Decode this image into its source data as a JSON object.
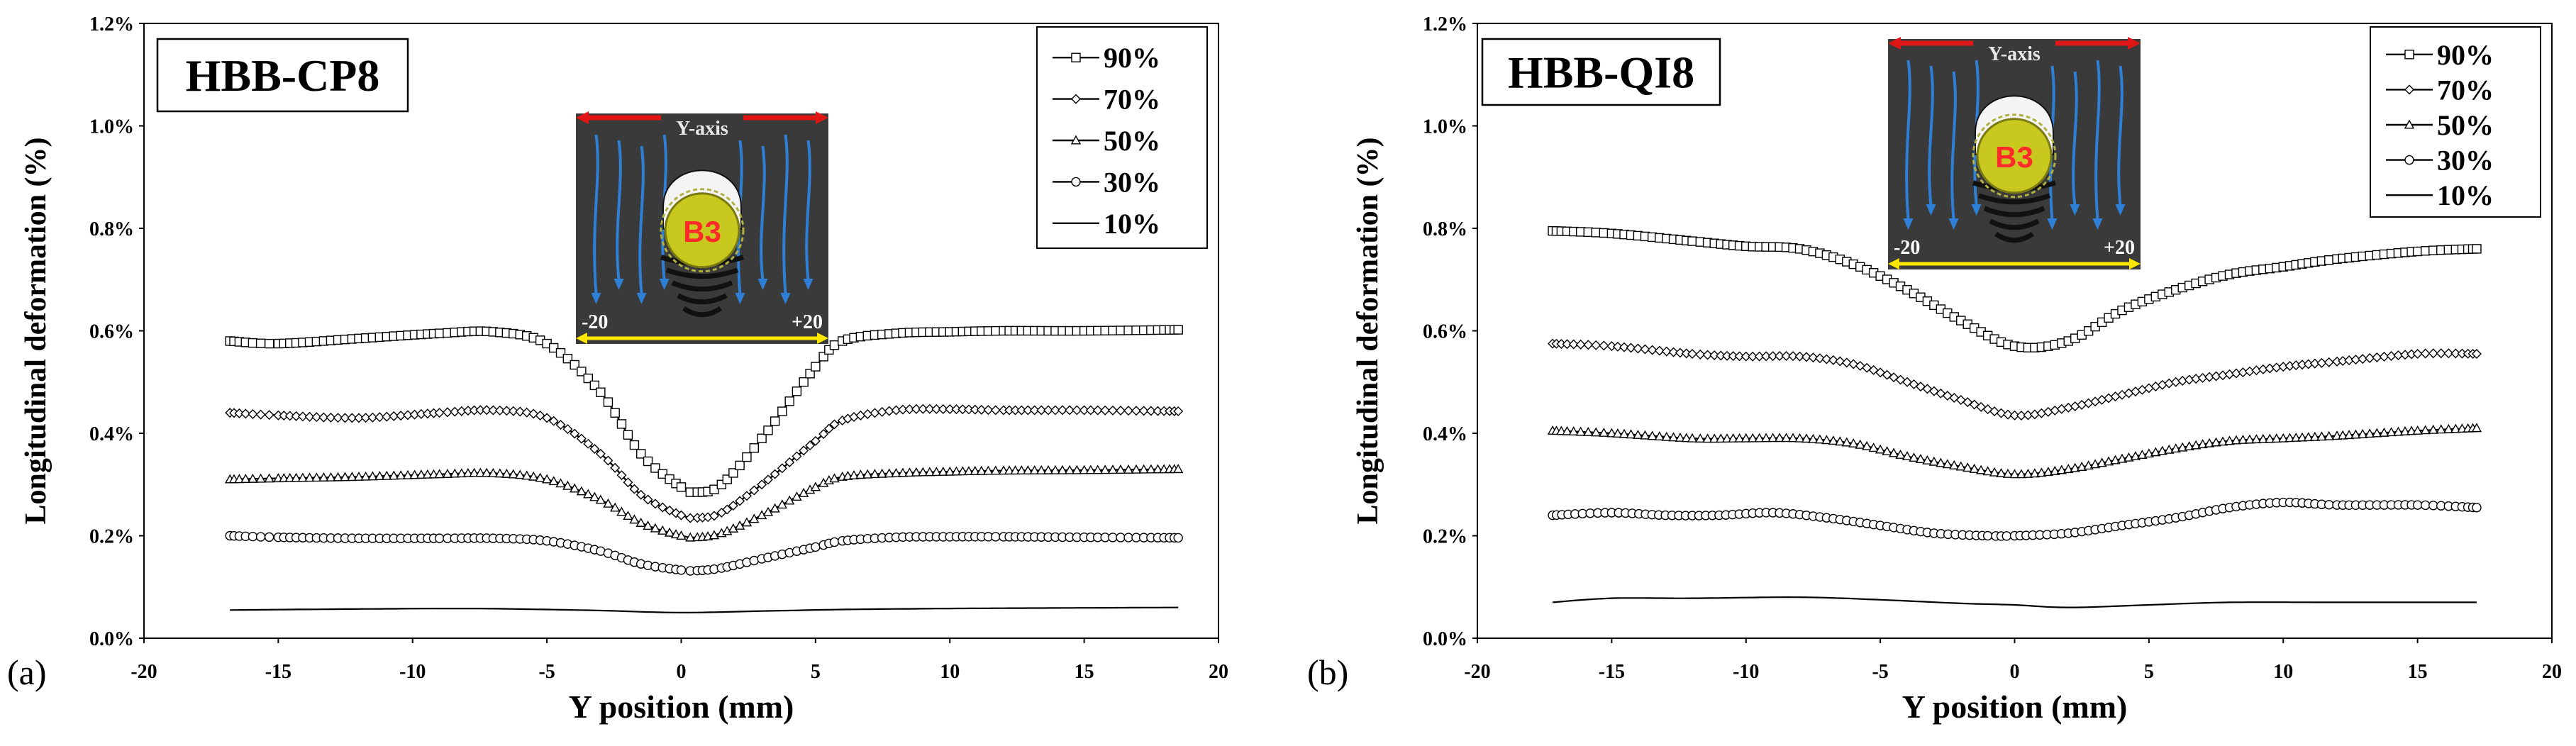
{
  "figure": {
    "panels": [
      {
        "label": "(a)",
        "chart_ref": 0
      },
      {
        "label": "(b)",
        "chart_ref": 1
      }
    ]
  },
  "colors": {
    "axis": "#000000",
    "inset_bg": "#3a3a3a",
    "arrow_blue": "#2e7fd6",
    "implant_yellow": "#c8c81e",
    "label_red": "#ff2a2a",
    "y_axis_arrow_red": "#e01515",
    "dimension_yellow": "#ffe600"
  },
  "chart_data": [
    {
      "type": "line",
      "title": "HBB-CP8",
      "xlabel": "Y position (mm)",
      "ylabel": "Longitudinal deformation (%)",
      "xlim": [
        -20,
        20
      ],
      "ylim": [
        0,
        1.2
      ],
      "xticks": [
        -20,
        -15,
        -10,
        -5,
        0,
        5,
        10,
        15,
        20
      ],
      "yticks": [
        "0.0%",
        "0.2%",
        "0.4%",
        "0.6%",
        "0.8%",
        "1.0%",
        "1.2%"
      ],
      "grid": false,
      "legend": "top-right",
      "inset": {
        "axis_label": "Y-axis",
        "marker_label": "B3",
        "left_label": "-20",
        "right_label": "+20",
        "position": "top-center"
      },
      "series": [
        {
          "name": "90%",
          "marker": "square",
          "x": [
            -16.8,
            -15,
            -12,
            -9,
            -7,
            -5,
            -3,
            -1.5,
            0,
            0.6,
            1.5,
            3,
            5,
            6,
            8,
            10,
            12,
            15,
            18.5
          ],
          "y": [
            0.58,
            0.575,
            0.585,
            0.595,
            0.598,
            0.575,
            0.48,
            0.36,
            0.295,
            0.285,
            0.3,
            0.39,
            0.53,
            0.58,
            0.595,
            0.598,
            0.6,
            0.6,
            0.602
          ]
        },
        {
          "name": "70%",
          "marker": "diamond",
          "x": [
            -16.8,
            -15,
            -12,
            -9,
            -7,
            -5,
            -3,
            -1.5,
            0,
            0.6,
            1.5,
            3,
            5,
            6,
            8,
            10,
            12,
            15,
            18.5
          ],
          "y": [
            0.44,
            0.435,
            0.43,
            0.44,
            0.445,
            0.43,
            0.36,
            0.28,
            0.24,
            0.235,
            0.245,
            0.3,
            0.385,
            0.425,
            0.445,
            0.447,
            0.445,
            0.445,
            0.443
          ]
        },
        {
          "name": "50%",
          "marker": "triangle",
          "x": [
            -16.8,
            -15,
            -12,
            -9,
            -7,
            -5,
            -3,
            -1.5,
            0,
            0.6,
            1.5,
            3,
            5,
            6,
            8,
            10,
            12,
            15,
            18.5
          ],
          "y": [
            0.31,
            0.312,
            0.315,
            0.32,
            0.322,
            0.31,
            0.27,
            0.225,
            0.2,
            0.197,
            0.205,
            0.24,
            0.295,
            0.315,
            0.322,
            0.325,
            0.327,
            0.328,
            0.33
          ]
        },
        {
          "name": "30%",
          "marker": "circle",
          "x": [
            -16.8,
            -15,
            -12,
            -9,
            -7,
            -5,
            -3,
            -1.5,
            0,
            0.6,
            1.5,
            3,
            5,
            6,
            8,
            10,
            12,
            15,
            18.5
          ],
          "y": [
            0.2,
            0.197,
            0.195,
            0.195,
            0.195,
            0.19,
            0.17,
            0.145,
            0.133,
            0.132,
            0.137,
            0.155,
            0.178,
            0.19,
            0.197,
            0.198,
            0.198,
            0.197,
            0.196
          ]
        },
        {
          "name": "10%",
          "marker": "none",
          "x": [
            -16.8,
            -12,
            -8,
            -5,
            -3,
            0,
            3,
            6,
            10,
            14,
            18.5
          ],
          "y": [
            0.055,
            0.057,
            0.058,
            0.056,
            0.054,
            0.05,
            0.053,
            0.056,
            0.058,
            0.059,
            0.06
          ]
        }
      ]
    },
    {
      "type": "line",
      "title": "HBB-QI8",
      "xlabel": "Y position (mm)",
      "ylabel": "Longitudinal deformation (%)",
      "xlim": [
        -20,
        20
      ],
      "ylim": [
        0,
        1.2
      ],
      "xticks": [
        -20,
        -15,
        -10,
        -5,
        0,
        5,
        10,
        15,
        20
      ],
      "yticks": [
        "0.0%",
        "0.2%",
        "0.4%",
        "0.6%",
        "0.8%",
        "1.0%",
        "1.2%"
      ],
      "grid": false,
      "legend": "top-right",
      "inset": {
        "axis_label": "Y-axis",
        "marker_label": "B3",
        "left_label": "-20",
        "right_label": "+20",
        "position": "top-center"
      },
      "series": [
        {
          "name": "90%",
          "marker": "square",
          "x": [
            -17.2,
            -15,
            -12,
            -10,
            -8,
            -6,
            -4,
            -2,
            0,
            2,
            4,
            6,
            8,
            10,
            12,
            15,
            17.2
          ],
          "y": [
            0.795,
            0.79,
            0.775,
            0.765,
            0.76,
            0.73,
            0.68,
            0.62,
            0.57,
            0.58,
            0.64,
            0.68,
            0.71,
            0.725,
            0.74,
            0.755,
            0.76
          ]
        },
        {
          "name": "70%",
          "marker": "diamond",
          "x": [
            -17.2,
            -15,
            -12,
            -10,
            -8,
            -6,
            -4,
            -2,
            0,
            2,
            4,
            6,
            8,
            10,
            12,
            15,
            17.2
          ],
          "y": [
            0.575,
            0.57,
            0.555,
            0.55,
            0.55,
            0.535,
            0.5,
            0.465,
            0.435,
            0.45,
            0.475,
            0.5,
            0.515,
            0.53,
            0.54,
            0.555,
            0.555
          ]
        },
        {
          "name": "50%",
          "marker": "triangle",
          "x": [
            -17.2,
            -15,
            -12,
            -10,
            -8,
            -6,
            -4,
            -2,
            0,
            2,
            4,
            6,
            8,
            10,
            12,
            15,
            17.2
          ],
          "y": [
            0.405,
            0.4,
            0.39,
            0.39,
            0.39,
            0.38,
            0.355,
            0.335,
            0.32,
            0.33,
            0.35,
            0.37,
            0.385,
            0.39,
            0.395,
            0.405,
            0.41
          ]
        },
        {
          "name": "30%",
          "marker": "circle",
          "x": [
            -17.2,
            -15,
            -13,
            -11,
            -9,
            -7,
            -5,
            -3,
            -1,
            0,
            2,
            4,
            6,
            8,
            10,
            12,
            15,
            17.2
          ],
          "y": [
            0.24,
            0.245,
            0.24,
            0.24,
            0.245,
            0.235,
            0.22,
            0.205,
            0.2,
            0.2,
            0.205,
            0.22,
            0.235,
            0.255,
            0.265,
            0.26,
            0.26,
            0.255
          ]
        },
        {
          "name": "10%",
          "marker": "none",
          "x": [
            -17.2,
            -15,
            -12,
            -8,
            -5,
            -2,
            0,
            2,
            5,
            8,
            12,
            17.2
          ],
          "y": [
            0.07,
            0.078,
            0.078,
            0.08,
            0.075,
            0.068,
            0.065,
            0.06,
            0.065,
            0.07,
            0.07,
            0.07
          ]
        }
      ]
    }
  ]
}
